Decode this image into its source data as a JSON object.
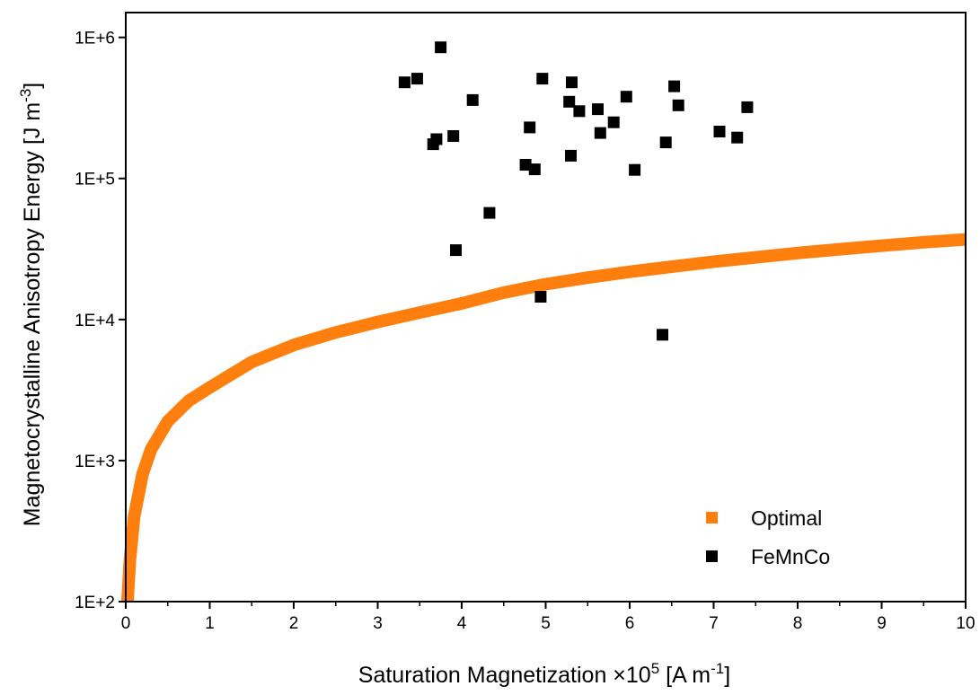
{
  "chart_data": {
    "type": "scatter",
    "xlabel": "Saturation Magnetization ×10",
    "xlabel_sup": "5",
    "xlabel_unit_pre": " [A m",
    "xlabel_unit_sup": "-1",
    "xlabel_unit_post": "]",
    "ylabel": "Magnetocrystalline Anisotropy Energy [J m",
    "ylabel_sup": "-3",
    "ylabel_post": "]",
    "xlim": [
      0,
      10
    ],
    "ylim": [
      100,
      1500000
    ],
    "yscale": "log",
    "grid": false,
    "legend_position": "bottom-right",
    "x_ticks": [
      "0",
      "1",
      "2",
      "3",
      "4",
      "5",
      "6",
      "7",
      "8",
      "9",
      "10"
    ],
    "y_ticks": [
      "1E+2",
      "1E+3",
      "1E+4",
      "1E+5",
      "1E+6"
    ],
    "series": [
      {
        "name": "Optimal",
        "kind": "curve",
        "color": "#ff7f0e",
        "x": [
          0.02,
          0.05,
          0.1,
          0.2,
          0.3,
          0.5,
          0.75,
          1,
          1.5,
          2,
          2.5,
          3,
          3.5,
          4,
          4.5,
          5,
          5.5,
          6,
          6.5,
          7,
          7.5,
          8,
          8.5,
          9,
          9.5,
          10
        ],
        "y": [
          100,
          200,
          400,
          800,
          1200,
          1900,
          2650,
          3300,
          5000,
          6600,
          8100,
          9600,
          11200,
          13000,
          15500,
          17800,
          19800,
          21800,
          23700,
          25700,
          27600,
          29600,
          31500,
          33400,
          35300,
          37000
        ]
      },
      {
        "name": "FeMnCo",
        "kind": "scatter",
        "color": "#000000",
        "x": [
          3.32,
          3.47,
          3.75,
          3.66,
          3.7,
          3.9,
          3.93,
          4.13,
          4.33,
          4.76,
          4.81,
          4.87,
          4.94,
          4.96,
          5.28,
          5.3,
          5.31,
          5.4,
          5.62,
          5.65,
          5.81,
          5.96,
          6.06,
          6.39,
          6.43,
          6.53,
          6.58,
          7.07,
          7.28,
          7.4
        ],
        "y": [
          480000,
          510000,
          850000,
          175000,
          190000,
          200000,
          31000,
          360000,
          57000,
          125000,
          230000,
          116000,
          14500,
          510000,
          350000,
          145000,
          480000,
          300000,
          310000,
          210000,
          250000,
          380000,
          115000,
          7800,
          180000,
          450000,
          330000,
          215000,
          195000,
          320000
        ]
      }
    ]
  }
}
